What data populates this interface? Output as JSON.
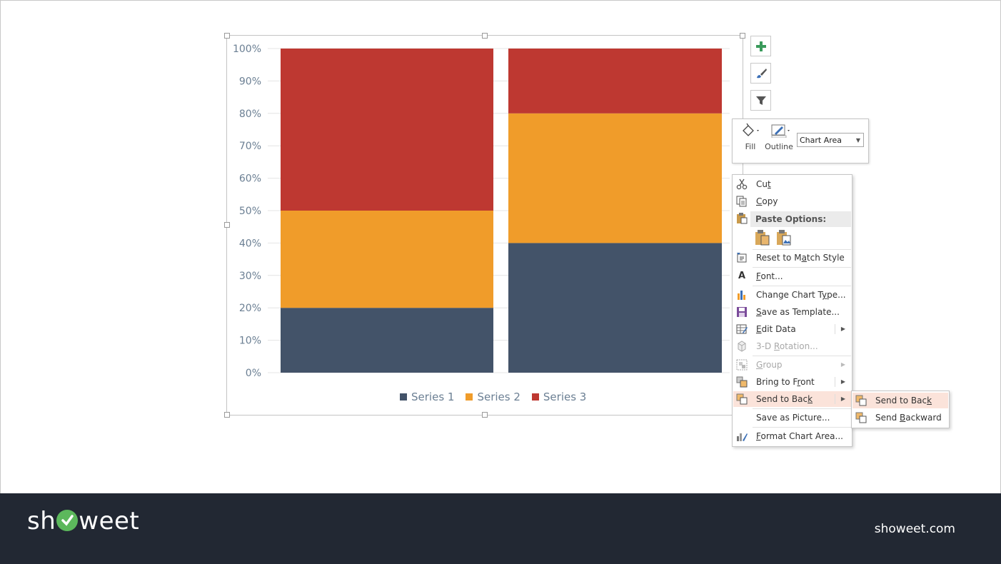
{
  "chart_data": {
    "type": "bar",
    "stacked": "percent",
    "categories": [
      "",
      ""
    ],
    "series": [
      {
        "name": "Series 1",
        "color": "#435369",
        "values": [
          20,
          40
        ]
      },
      {
        "name": "Series 2",
        "color": "#f09c2a",
        "values": [
          30,
          40
        ]
      },
      {
        "name": "Series 3",
        "color": "#be3831",
        "values": [
          50,
          20
        ]
      }
    ],
    "y_ticks": [
      "0%",
      "10%",
      "20%",
      "30%",
      "40%",
      "50%",
      "60%",
      "70%",
      "80%",
      "90%",
      "100%"
    ],
    "ylim": [
      0,
      100
    ],
    "grid": true,
    "legend": "bottom"
  },
  "mini_toolbar": {
    "fill_label": "Fill",
    "outline_label": "Outline",
    "element_select": "Chart Area"
  },
  "context_menu": {
    "cut": {
      "pre": "Cu",
      "key": "t",
      "post": ""
    },
    "copy": {
      "pre": "",
      "key": "C",
      "post": "opy"
    },
    "paste_options": "Paste Options:",
    "reset": {
      "pre": "Reset to M",
      "key": "a",
      "post": "tch Style"
    },
    "font": {
      "pre": "",
      "key": "F",
      "post": "ont..."
    },
    "change_type": {
      "pre": "Change Chart T",
      "key": "y",
      "post": "pe..."
    },
    "save_template": {
      "pre": "",
      "key": "S",
      "post": "ave as Template..."
    },
    "edit_data": {
      "pre": "",
      "key": "E",
      "post": "dit Data"
    },
    "rotation": {
      "pre": "3-D ",
      "key": "R",
      "post": "otation..."
    },
    "group": {
      "pre": "",
      "key": "G",
      "post": "roup"
    },
    "bring_front": {
      "pre": "Bring to F",
      "key": "r",
      "post": "ont"
    },
    "send_back": {
      "pre": "Send to Bac",
      "key": "k",
      "post": ""
    },
    "save_picture": {
      "pre": "Save as Picture...",
      "key": "",
      "post": ""
    },
    "format": {
      "pre": "",
      "key": "F",
      "post": "ormat Chart Area..."
    }
  },
  "submenu": {
    "send_to_back": {
      "pre": "Send to Bac",
      "key": "k",
      "post": ""
    },
    "send_backward": {
      "pre": "Send ",
      "key": "B",
      "post": "ackward"
    }
  },
  "footer": {
    "brand_pre": "sh",
    "brand_post": "weet",
    "site": "showeet.com"
  }
}
